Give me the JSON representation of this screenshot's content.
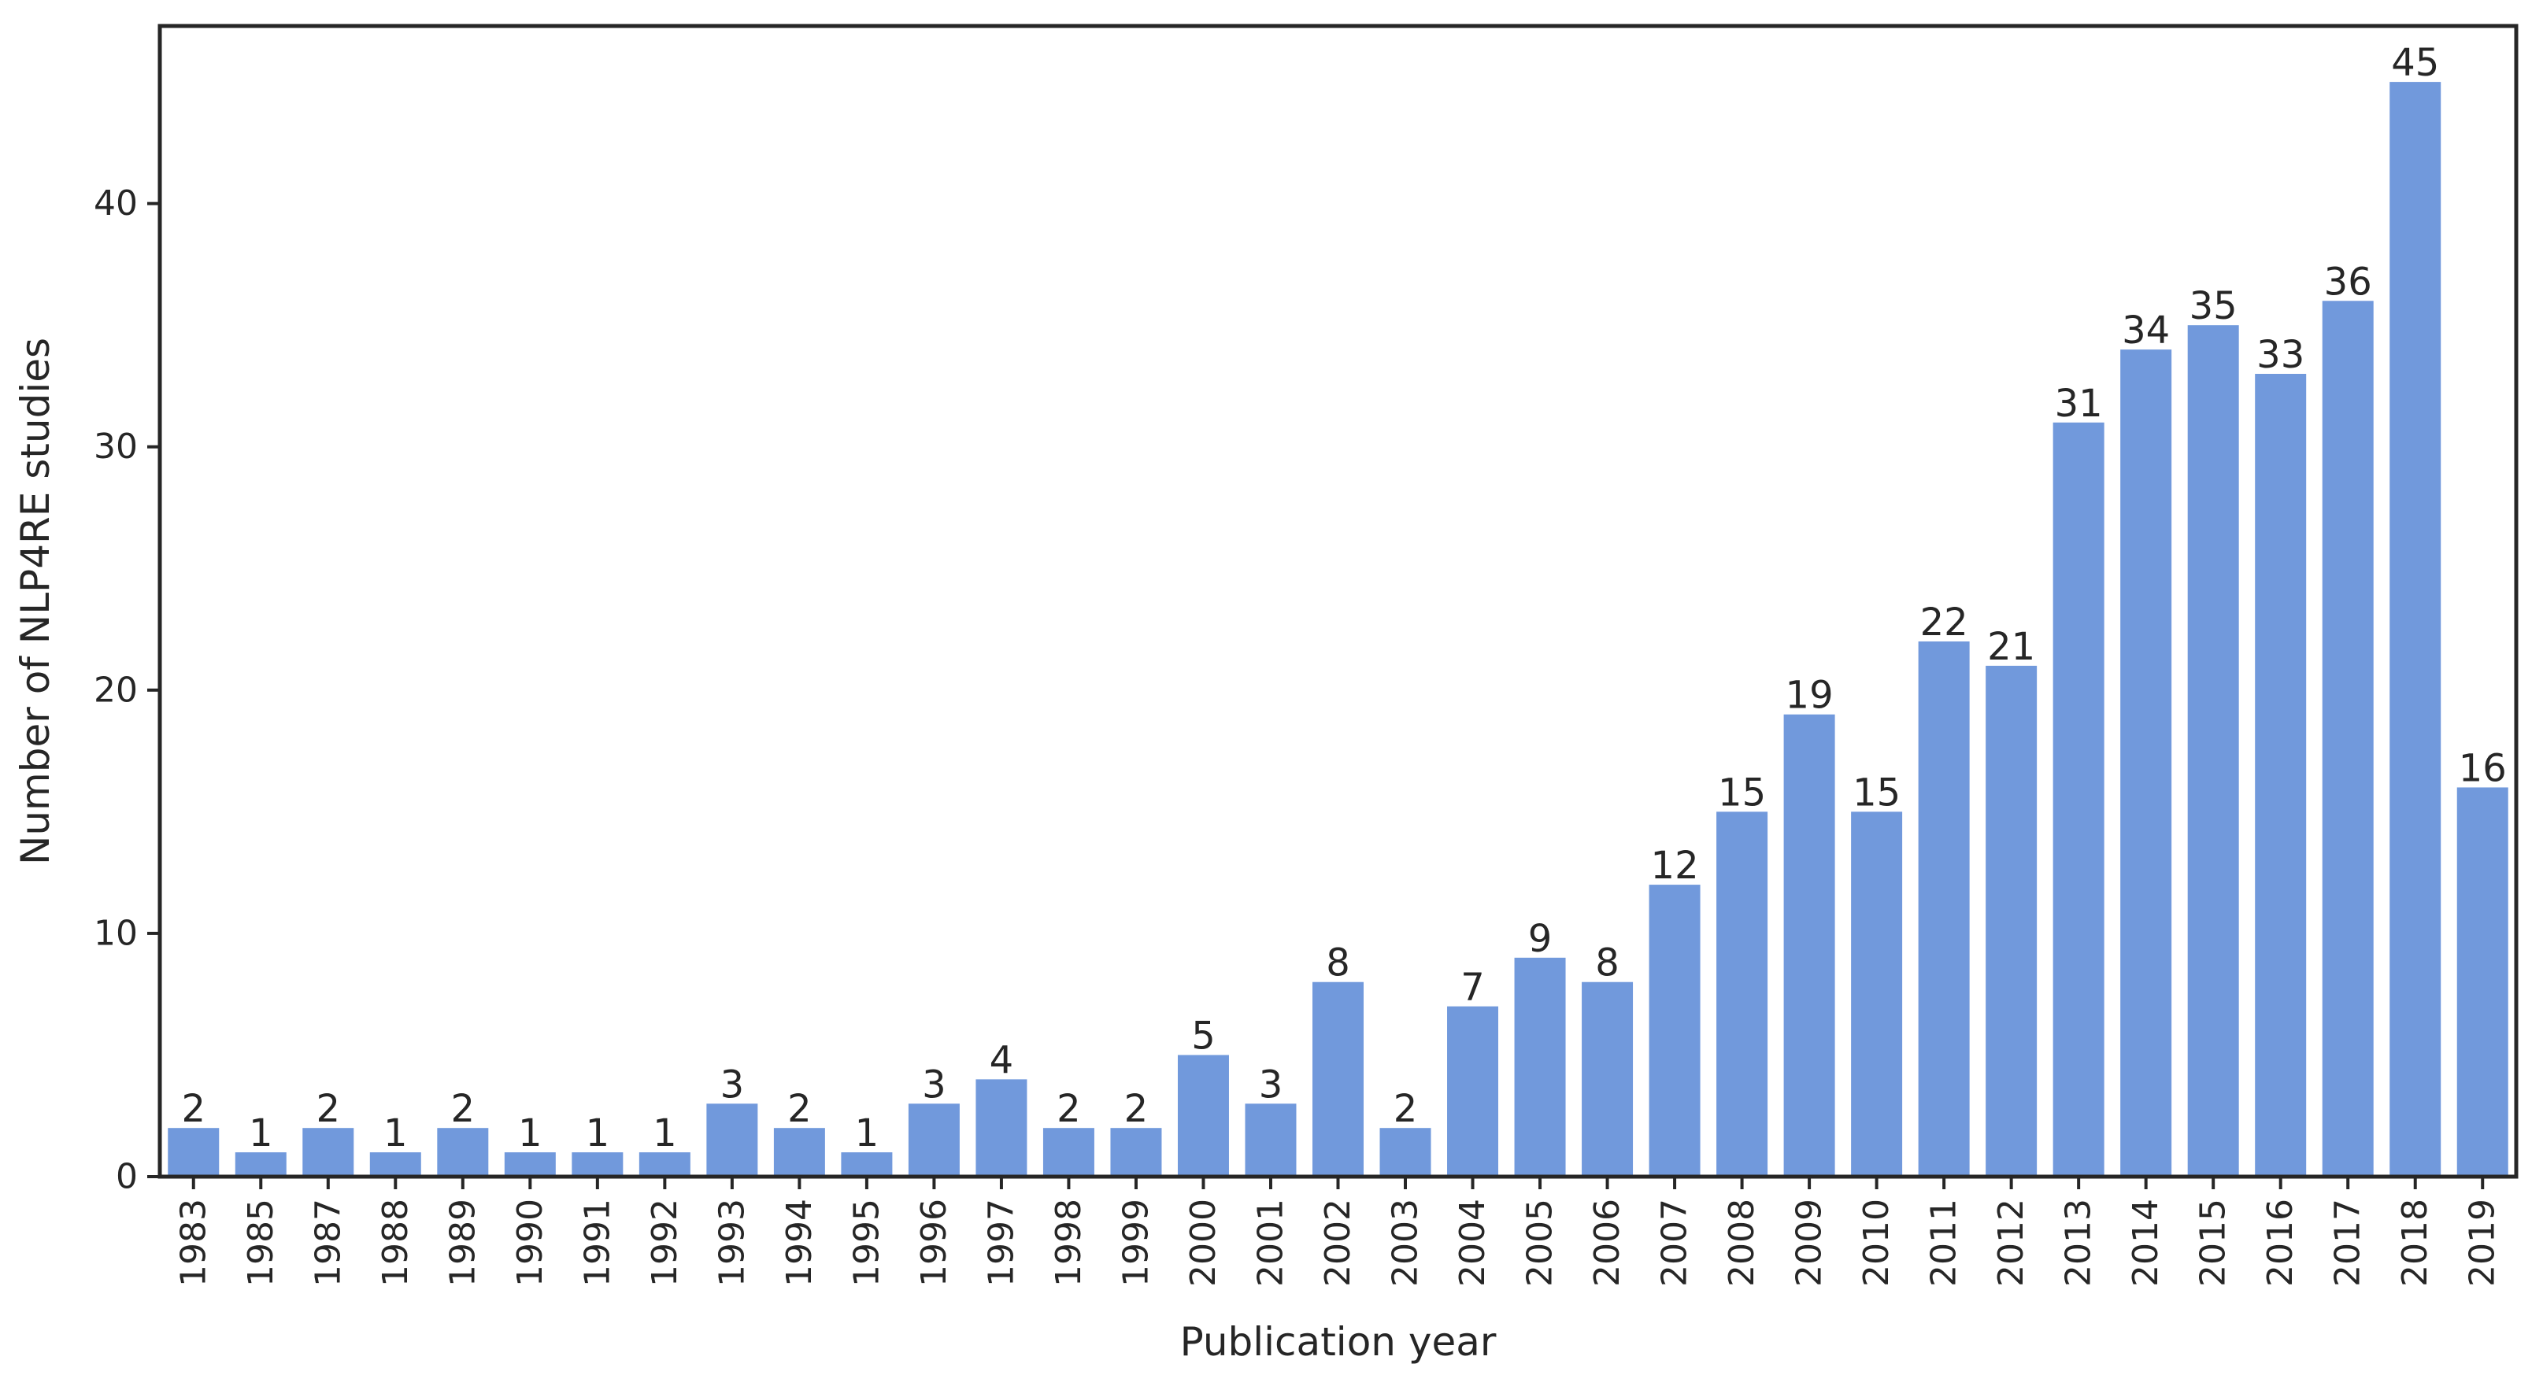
{
  "chart_data": {
    "type": "bar",
    "xlabel": "Publication year",
    "ylabel": "Number of NLP4RE studies",
    "categories": [
      "1983",
      "1985",
      "1987",
      "1988",
      "1989",
      "1990",
      "1991",
      "1992",
      "1993",
      "1994",
      "1995",
      "1996",
      "1997",
      "1998",
      "1999",
      "2000",
      "2001",
      "2002",
      "2003",
      "2004",
      "2005",
      "2006",
      "2007",
      "2008",
      "2009",
      "2010",
      "2011",
      "2012",
      "2013",
      "2014",
      "2015",
      "2016",
      "2017",
      "2018",
      "2019"
    ],
    "values": [
      2,
      1,
      2,
      1,
      2,
      1,
      1,
      1,
      3,
      2,
      1,
      3,
      4,
      2,
      2,
      5,
      3,
      8,
      2,
      7,
      9,
      8,
      12,
      15,
      19,
      15,
      22,
      21,
      31,
      34,
      35,
      33,
      36,
      45,
      16
    ],
    "ylim": [
      0,
      47.3
    ],
    "yticks": [
      0,
      10,
      20,
      30,
      40
    ],
    "bar_color": "#7199dc",
    "data_labels": true,
    "grid": false
  }
}
